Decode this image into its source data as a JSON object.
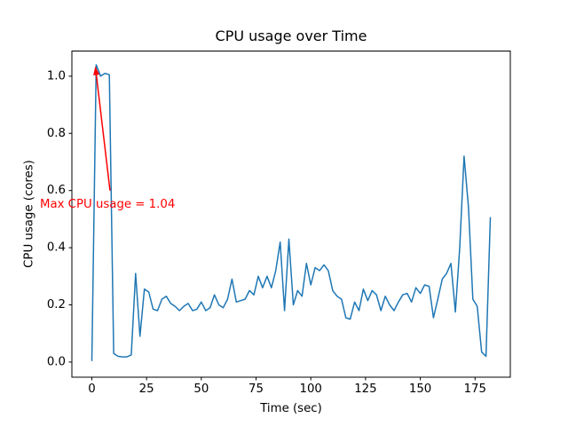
{
  "chart_data": {
    "type": "line",
    "title": "CPU usage over Time",
    "xlabel": "Time (sec)",
    "ylabel": "CPU usage (cores)",
    "grid": false,
    "legend": false,
    "line_color": "#1f77b4",
    "line_width": 1.5,
    "background_color": "#ffffff",
    "axis_color": "#000000",
    "xlim": [
      -9.1,
      191.1
    ],
    "ylim": [
      -0.053,
      1.088
    ],
    "xticks": [
      0,
      25,
      50,
      75,
      100,
      125,
      150,
      175
    ],
    "yticks": [
      0.0,
      0.2,
      0.4,
      0.6,
      0.8,
      1.0
    ],
    "ytick_labels": [
      "0.0",
      "0.2",
      "0.4",
      "0.6",
      "0.8",
      "1.0"
    ],
    "max_cpu_usage": 1.04,
    "x": [
      0,
      2,
      4,
      6,
      8,
      10,
      12,
      14,
      16,
      18,
      20,
      22,
      24,
      26,
      28,
      30,
      32,
      34,
      36,
      38,
      40,
      42,
      44,
      46,
      48,
      50,
      52,
      54,
      56,
      58,
      60,
      62,
      64,
      66,
      68,
      70,
      72,
      74,
      76,
      78,
      80,
      82,
      84,
      86,
      88,
      90,
      92,
      94,
      96,
      98,
      100,
      102,
      104,
      106,
      108,
      110,
      112,
      114,
      116,
      118,
      120,
      122,
      124,
      126,
      128,
      130,
      132,
      134,
      136,
      138,
      140,
      142,
      144,
      146,
      148,
      150,
      152,
      154,
      156,
      158,
      160,
      162,
      164,
      166,
      168,
      170,
      172,
      174,
      176,
      178,
      180,
      182
    ],
    "values": [
      0.005,
      1.04,
      1.0,
      1.01,
      1.005,
      0.03,
      0.02,
      0.018,
      0.018,
      0.025,
      0.31,
      0.09,
      0.255,
      0.245,
      0.185,
      0.18,
      0.22,
      0.23,
      0.205,
      0.195,
      0.18,
      0.195,
      0.205,
      0.18,
      0.185,
      0.21,
      0.18,
      0.19,
      0.235,
      0.2,
      0.19,
      0.22,
      0.29,
      0.21,
      0.215,
      0.22,
      0.25,
      0.235,
      0.3,
      0.26,
      0.3,
      0.26,
      0.32,
      0.42,
      0.18,
      0.43,
      0.2,
      0.25,
      0.23,
      0.345,
      0.27,
      0.33,
      0.32,
      0.34,
      0.32,
      0.25,
      0.23,
      0.22,
      0.155,
      0.15,
      0.21,
      0.18,
      0.255,
      0.215,
      0.25,
      0.235,
      0.18,
      0.23,
      0.2,
      0.18,
      0.21,
      0.235,
      0.24,
      0.21,
      0.26,
      0.24,
      0.27,
      0.265,
      0.155,
      0.22,
      0.29,
      0.31,
      0.345,
      0.175,
      0.4,
      0.72,
      0.54,
      0.22,
      0.195,
      0.035,
      0.02,
      0.505
    ],
    "annotation": {
      "text": "Max CPU usage = 1.04",
      "color": "#ff0000",
      "arrow_xy": [
        1.6,
        1.035
      ],
      "arrow_tail": [
        8.3,
        0.6
      ],
      "text_xy": [
        -23.7,
        0.55
      ]
    }
  }
}
